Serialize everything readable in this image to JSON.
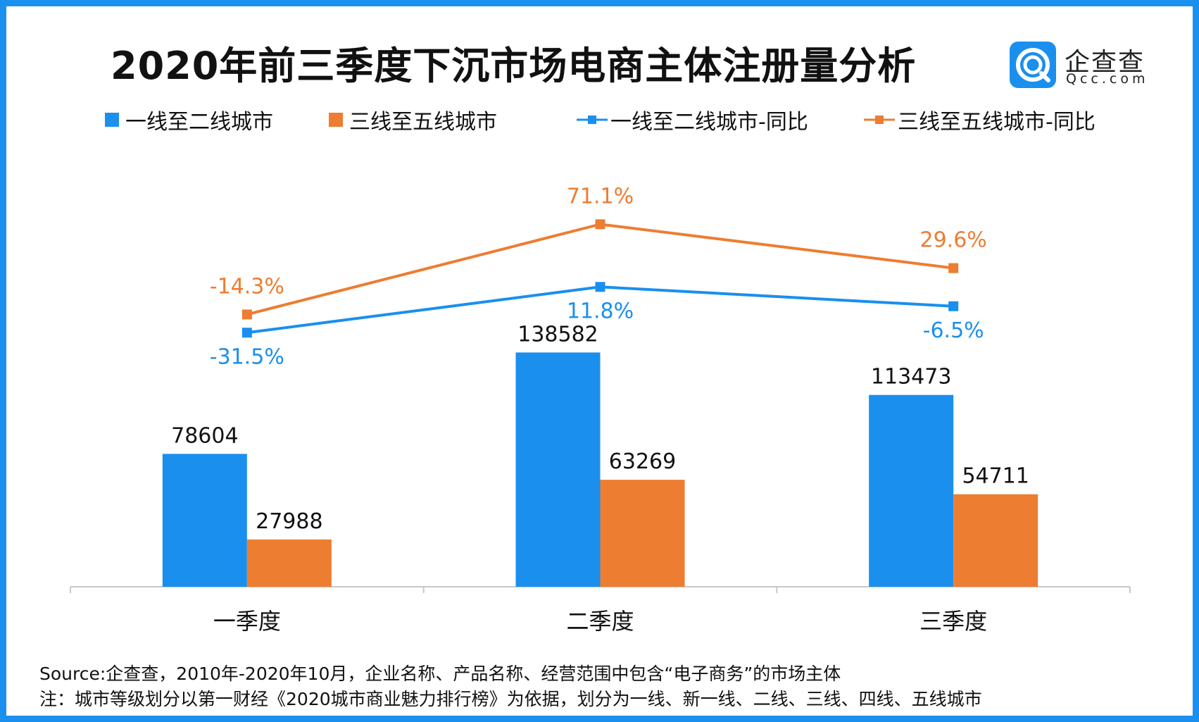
{
  "title": "2020年前三季度下沉市场电商主体注册量分析",
  "logo": {
    "name_cn": "企查查",
    "name_en": "Qcc.com",
    "icon": "qcc-logo-icon"
  },
  "colors": {
    "frame": "#1a8fee",
    "blue": "#1a8fee",
    "orange": "#ed7d31",
    "axis": "#c8c8c8"
  },
  "chart_data": {
    "type": "bar",
    "title": "2020年前三季度下沉市场电商主体注册量分析",
    "categories": [
      "一季度",
      "二季度",
      "三季度"
    ],
    "series": [
      {
        "name": "一线至二线城市",
        "kind": "bar",
        "color": "#1a8fee",
        "values": [
          78604,
          138582,
          113473
        ],
        "labels": [
          "78604",
          "138582",
          "113473"
        ]
      },
      {
        "name": "三线至五线城市",
        "kind": "bar",
        "color": "#ed7d31",
        "values": [
          27988,
          63269,
          54711
        ],
        "labels": [
          "27988",
          "63269",
          "54711"
        ]
      },
      {
        "name": "一线至二线城市-同比",
        "kind": "line",
        "color": "#1a8fee",
        "values": [
          -31.5,
          11.8,
          -6.5
        ],
        "labels": [
          "-31.5%",
          "11.8%",
          "-6.5%"
        ]
      },
      {
        "name": "三线至五线城市-同比",
        "kind": "line",
        "color": "#ed7d31",
        "values": [
          -14.3,
          71.1,
          29.6
        ],
        "labels": [
          "-14.3%",
          "71.1%",
          "29.6%"
        ]
      }
    ],
    "bar_ylim": [
      0,
      180000
    ],
    "line_ylim": [
      -80,
      100
    ],
    "xlabel": "",
    "ylabel": "",
    "grid": false,
    "legend_position": "top"
  },
  "footer": {
    "source": "Source:企查查，2010年-2020年10月，企业名称、产品名称、经营范围中包含“电子商务”的市场主体",
    "note": "注：城市等级划分以第一财经《2020城市商业魅力排行榜》为依据，划分为一线、新一线、二线、三线、四线、五线城市"
  }
}
